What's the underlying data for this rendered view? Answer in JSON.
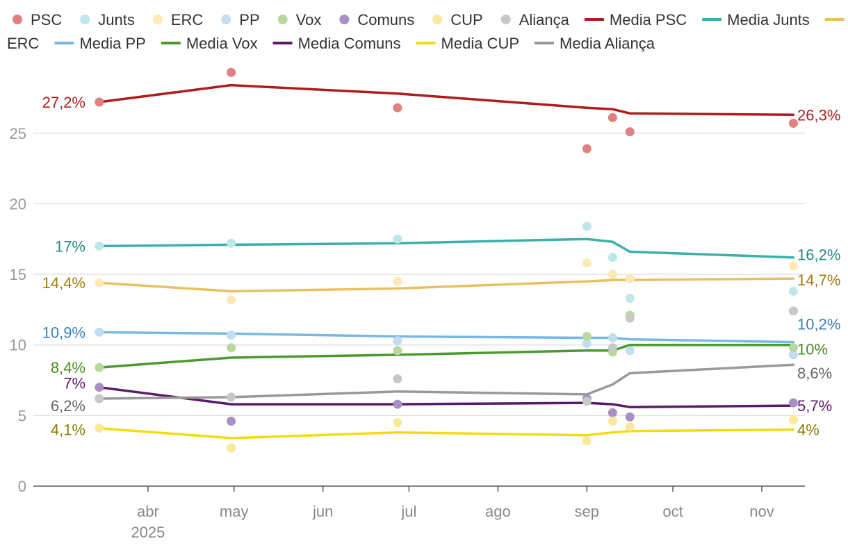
{
  "chart_data": {
    "type": "scatter+line",
    "title": "",
    "xlabel": "",
    "ylabel": "",
    "ylim": [
      0,
      29
    ],
    "y_ticks": [
      "0",
      "5",
      "10",
      "15",
      "20",
      "25"
    ],
    "x_ticks": [
      "abr",
      "may",
      "jun",
      "jul",
      "ago",
      "sep",
      "oct",
      "nov"
    ],
    "x_year_label": "2025",
    "legend": {
      "position": "top",
      "points": [
        "PSC",
        "Junts",
        "ERC",
        "PP",
        "Vox",
        "Comuns",
        "CUP",
        "Aliança"
      ],
      "lines": [
        "Media PSC",
        "Media Junts",
        "Media ERC",
        "Media PP",
        "Media Vox",
        "Media Comuns",
        "Media CUP",
        "Media Aliança"
      ]
    },
    "poll_dates": [
      "2025-03-15",
      "2025-04-30",
      "2025-06-27",
      "2025-09-01",
      "2025-09-10",
      "2025-09-16",
      "2025-11-12"
    ],
    "series": [
      {
        "name": "PSC",
        "point_color": "#e08080",
        "line_color": "#b01c1c",
        "label_color": "#b01c1c",
        "polls": [
          [
            "2025-03-15",
            27.2
          ],
          [
            "2025-04-30",
            29.3
          ],
          [
            "2025-06-27",
            26.8
          ],
          [
            "2025-09-01",
            23.9
          ],
          [
            "2025-09-10",
            26.1
          ],
          [
            "2025-09-16",
            25.1
          ],
          [
            "2025-11-12",
            25.7
          ]
        ],
        "average": [
          [
            "2025-03-15",
            27.2
          ],
          [
            "2025-04-30",
            28.4
          ],
          [
            "2025-06-27",
            27.8
          ],
          [
            "2025-09-01",
            26.8
          ],
          [
            "2025-09-10",
            26.7
          ],
          [
            "2025-09-16",
            26.4
          ],
          [
            "2025-11-12",
            26.3
          ]
        ],
        "start_label": "27,2%",
        "end_label": "26,3%"
      },
      {
        "name": "Junts",
        "point_color": "#bfe6e8",
        "line_color": "#3ab0a8",
        "label_color": "#1a8c83",
        "polls": [
          [
            "2025-03-15",
            17.0
          ],
          [
            "2025-04-30",
            17.2
          ],
          [
            "2025-06-27",
            17.5
          ],
          [
            "2025-09-01",
            18.4
          ],
          [
            "2025-09-10",
            16.2
          ],
          [
            "2025-09-16",
            13.3
          ],
          [
            "2025-11-12",
            13.8
          ]
        ],
        "average": [
          [
            "2025-03-15",
            17.0
          ],
          [
            "2025-04-30",
            17.1
          ],
          [
            "2025-06-27",
            17.2
          ],
          [
            "2025-09-01",
            17.5
          ],
          [
            "2025-09-10",
            17.3
          ],
          [
            "2025-09-16",
            16.6
          ],
          [
            "2025-11-12",
            16.2
          ]
        ],
        "start_label": "17%",
        "end_label": "16,2%"
      },
      {
        "name": "ERC",
        "point_color": "#fde9b5",
        "line_color": "#e8c060",
        "label_color": "#a07a10",
        "polls": [
          [
            "2025-03-15",
            14.4
          ],
          [
            "2025-04-30",
            13.2
          ],
          [
            "2025-06-27",
            14.5
          ],
          [
            "2025-09-01",
            15.8
          ],
          [
            "2025-09-10",
            15.0
          ],
          [
            "2025-09-16",
            14.7
          ],
          [
            "2025-11-12",
            15.6
          ]
        ],
        "average": [
          [
            "2025-03-15",
            14.4
          ],
          [
            "2025-04-30",
            13.8
          ],
          [
            "2025-06-27",
            14.0
          ],
          [
            "2025-09-01",
            14.5
          ],
          [
            "2025-09-10",
            14.6
          ],
          [
            "2025-09-16",
            14.6
          ],
          [
            "2025-11-12",
            14.7
          ]
        ],
        "start_label": "14,4%",
        "end_label": "14,7%"
      },
      {
        "name": "PP",
        "point_color": "#c2dcf0",
        "line_color": "#78b8e4",
        "label_color": "#3a7fb8",
        "polls": [
          [
            "2025-03-15",
            10.9
          ],
          [
            "2025-04-30",
            10.7
          ],
          [
            "2025-06-27",
            10.3
          ],
          [
            "2025-09-01",
            10.1
          ],
          [
            "2025-09-10",
            10.5
          ],
          [
            "2025-09-16",
            9.6
          ],
          [
            "2025-11-12",
            9.3
          ]
        ],
        "average": [
          [
            "2025-03-15",
            10.9
          ],
          [
            "2025-04-30",
            10.8
          ],
          [
            "2025-06-27",
            10.6
          ],
          [
            "2025-09-01",
            10.5
          ],
          [
            "2025-09-10",
            10.5
          ],
          [
            "2025-09-16",
            10.4
          ],
          [
            "2025-11-12",
            10.2
          ]
        ],
        "start_label": "10,9%",
        "end_label": "10,2%"
      },
      {
        "name": "Vox",
        "point_color": "#b8d8a0",
        "line_color": "#4a9a30",
        "label_color": "#4a8a20",
        "polls": [
          [
            "2025-03-15",
            8.4
          ],
          [
            "2025-04-30",
            9.8
          ],
          [
            "2025-06-27",
            9.6
          ],
          [
            "2025-09-01",
            10.6
          ],
          [
            "2025-09-10",
            9.5
          ],
          [
            "2025-09-16",
            12.1
          ],
          [
            "2025-11-12",
            9.8
          ]
        ],
        "average": [
          [
            "2025-03-15",
            8.4
          ],
          [
            "2025-04-30",
            9.1
          ],
          [
            "2025-06-27",
            9.3
          ],
          [
            "2025-09-01",
            9.6
          ],
          [
            "2025-09-10",
            9.6
          ],
          [
            "2025-09-16",
            10.0
          ],
          [
            "2025-11-12",
            10.0
          ]
        ],
        "start_label": "8,4%",
        "end_label": "10%"
      },
      {
        "name": "Comuns",
        "point_color": "#a890c4",
        "line_color": "#5a1a6a",
        "label_color": "#5a1a6a",
        "polls": [
          [
            "2025-03-15",
            7.0
          ],
          [
            "2025-04-30",
            4.6
          ],
          [
            "2025-06-27",
            5.8
          ],
          [
            "2025-09-01",
            6.2
          ],
          [
            "2025-09-10",
            5.2
          ],
          [
            "2025-09-16",
            4.9
          ],
          [
            "2025-11-12",
            5.9
          ]
        ],
        "average": [
          [
            "2025-03-15",
            7.0
          ],
          [
            "2025-04-30",
            5.8
          ],
          [
            "2025-06-27",
            5.8
          ],
          [
            "2025-09-01",
            5.9
          ],
          [
            "2025-09-10",
            5.8
          ],
          [
            "2025-09-16",
            5.6
          ],
          [
            "2025-11-12",
            5.7
          ]
        ],
        "start_label": "7%",
        "end_label": "5,7%"
      },
      {
        "name": "CUP",
        "point_color": "#fbe99a",
        "line_color": "#f2dc10",
        "label_color": "#8a7a00",
        "polls": [
          [
            "2025-03-15",
            4.1
          ],
          [
            "2025-04-30",
            2.7
          ],
          [
            "2025-06-27",
            4.5
          ],
          [
            "2025-09-01",
            3.2
          ],
          [
            "2025-09-10",
            4.6
          ],
          [
            "2025-09-16",
            4.2
          ],
          [
            "2025-11-12",
            4.7
          ]
        ],
        "average": [
          [
            "2025-03-15",
            4.1
          ],
          [
            "2025-04-30",
            3.4
          ],
          [
            "2025-06-27",
            3.8
          ],
          [
            "2025-09-01",
            3.6
          ],
          [
            "2025-09-10",
            3.8
          ],
          [
            "2025-09-16",
            3.9
          ],
          [
            "2025-11-12",
            4.0
          ]
        ],
        "start_label": "4,1%",
        "end_label": "4%"
      },
      {
        "name": "Aliança",
        "point_color": "#c8c8c8",
        "line_color": "#999999",
        "label_color": "#666666",
        "polls": [
          [
            "2025-03-15",
            6.2
          ],
          [
            "2025-04-30",
            6.3
          ],
          [
            "2025-06-27",
            7.6
          ],
          [
            "2025-09-01",
            6.0
          ],
          [
            "2025-09-10",
            9.8
          ],
          [
            "2025-09-16",
            11.9
          ],
          [
            "2025-11-12",
            12.4
          ]
        ],
        "average": [
          [
            "2025-03-15",
            6.2
          ],
          [
            "2025-04-30",
            6.3
          ],
          [
            "2025-06-27",
            6.7
          ],
          [
            "2025-09-01",
            6.5
          ],
          [
            "2025-09-10",
            7.2
          ],
          [
            "2025-09-16",
            8.0
          ],
          [
            "2025-11-12",
            8.6
          ]
        ],
        "start_label": "6,2%",
        "end_label": "8,6%"
      }
    ]
  }
}
